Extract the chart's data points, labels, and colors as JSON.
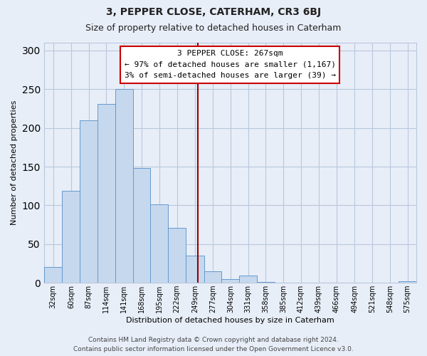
{
  "title": "3, PEPPER CLOSE, CATERHAM, CR3 6BJ",
  "subtitle": "Size of property relative to detached houses in Caterham",
  "xlabel": "Distribution of detached houses by size in Caterham",
  "ylabel": "Number of detached properties",
  "bar_labels": [
    "32sqm",
    "60sqm",
    "87sqm",
    "114sqm",
    "141sqm",
    "168sqm",
    "195sqm",
    "222sqm",
    "249sqm",
    "277sqm",
    "304sqm",
    "331sqm",
    "358sqm",
    "385sqm",
    "412sqm",
    "439sqm",
    "466sqm",
    "494sqm",
    "521sqm",
    "548sqm",
    "575sqm"
  ],
  "bar_values": [
    20,
    119,
    210,
    231,
    250,
    148,
    101,
    71,
    35,
    15,
    5,
    9,
    1,
    0,
    0,
    0,
    0,
    0,
    0,
    0,
    2
  ],
  "bar_color": "#c5d8ee",
  "bar_edge_color": "#6699cc",
  "ylim": [
    0,
    310
  ],
  "yticks": [
    0,
    50,
    100,
    150,
    200,
    250,
    300
  ],
  "bin_edges": [
    32,
    60,
    87,
    114,
    141,
    168,
    195,
    222,
    249,
    277,
    304,
    331,
    358,
    385,
    412,
    439,
    466,
    494,
    521,
    548,
    575,
    602
  ],
  "property_line_x": 267,
  "property_line_color": "#990000",
  "annotation_title": "3 PEPPER CLOSE: 267sqm",
  "annotation_line1": "← 97% of detached houses are smaller (1,167)",
  "annotation_line2": "3% of semi-detached houses are larger (39) →",
  "annotation_box_facecolor": "#ffffff",
  "annotation_box_edgecolor": "#cc0000",
  "footer1": "Contains HM Land Registry data © Crown copyright and database right 2024.",
  "footer2": "Contains public sector information licensed under the Open Government Licence v3.0.",
  "bg_color": "#e8eef8",
  "plot_bg_color": "#e8eef8",
  "grid_color": "#b8c8dc",
  "title_fontsize": 10,
  "subtitle_fontsize": 9,
  "ylabel_fontsize": 8,
  "xlabel_fontsize": 8,
  "tick_fontsize": 7,
  "footer_fontsize": 6.5
}
